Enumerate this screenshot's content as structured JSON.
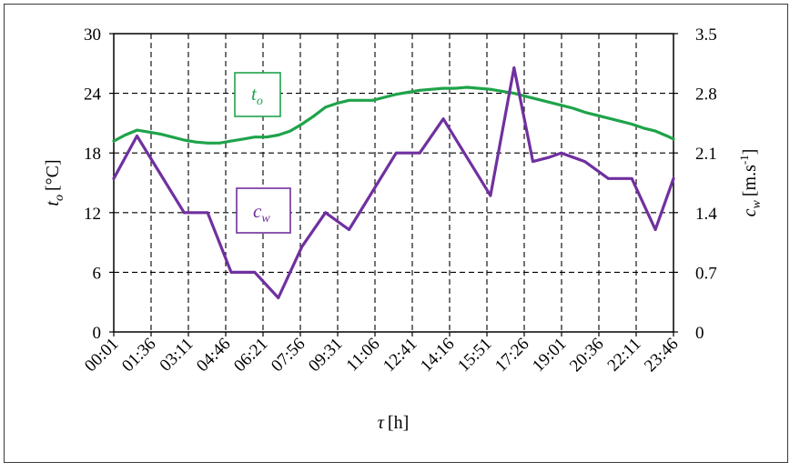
{
  "chart_data": {
    "type": "line",
    "title": "",
    "xlabel_symbol": "τ",
    "xlabel_unit": "[h]",
    "ylabel_left_symbol": "t",
    "ylabel_left_sub": "o",
    "ylabel_left_unit": "[°C]",
    "ylabel_right_symbol": "c",
    "ylabel_right_sub": "w",
    "ylabel_right_unit_pre": "[m.s",
    "ylabel_right_unit_sup": "-1",
    "ylabel_right_unit_post": "]",
    "x_tick_labels": [
      "00:01",
      "01:36",
      "03:11",
      "04:46",
      "06:21",
      "07:56",
      "09:31",
      "11:06",
      "12:41",
      "14:16",
      "15:51",
      "17:26",
      "19:01",
      "20:36",
      "22:11",
      "23:46"
    ],
    "x_range_hours": [
      0.0167,
      23.767
    ],
    "y_left": {
      "ticks": [
        0,
        6,
        12,
        18,
        24,
        30
      ],
      "ylim": [
        0,
        30
      ]
    },
    "y_right": {
      "ticks": [
        "0",
        "0.7",
        "1.4",
        "2.1",
        "2.8",
        "3.5"
      ],
      "ylim": [
        0,
        3.5
      ]
    },
    "grid": true,
    "series": [
      {
        "name": "t_o",
        "label_symbol": "t",
        "label_sub": "o",
        "axis": "left",
        "color": "#1fa34a",
        "x_hours": [
          0.0167,
          0.5,
          1.0,
          1.5,
          2.0,
          2.5,
          3.0,
          3.5,
          4.0,
          4.5,
          5.0,
          5.5,
          6.0,
          6.5,
          7.0,
          7.5,
          8.0,
          8.5,
          9.0,
          9.5,
          10.0,
          10.5,
          11.0,
          11.5,
          12.0,
          12.5,
          13.0,
          13.5,
          14.0,
          14.5,
          15.0,
          15.5,
          16.0,
          16.5,
          17.0,
          17.5,
          18.0,
          18.5,
          19.0,
          19.5,
          20.0,
          20.5,
          21.0,
          21.5,
          22.0,
          22.5,
          23.0,
          23.5,
          23.767
        ],
        "values": [
          19.2,
          19.8,
          20.3,
          20.1,
          19.9,
          19.6,
          19.3,
          19.1,
          19.0,
          19.0,
          19.2,
          19.4,
          19.6,
          19.6,
          19.8,
          20.2,
          20.9,
          21.7,
          22.6,
          23.0,
          23.3,
          23.3,
          23.3,
          23.6,
          23.9,
          24.1,
          24.3,
          24.4,
          24.5,
          24.5,
          24.6,
          24.5,
          24.4,
          24.2,
          24.0,
          23.7,
          23.4,
          23.1,
          22.8,
          22.5,
          22.1,
          21.8,
          21.5,
          21.2,
          20.9,
          20.5,
          20.2,
          19.7,
          19.4
        ]
      },
      {
        "name": "c_w",
        "label_symbol": "c",
        "label_sub": "w",
        "axis": "right",
        "color": "#7030a0",
        "x_hours": [
          0.0167,
          1.0,
          2.0,
          3.0,
          4.0,
          5.0,
          6.0,
          7.0,
          8.0,
          9.0,
          10.0,
          11.0,
          12.0,
          13.0,
          14.0,
          15.0,
          16.0,
          17.0,
          17.8,
          18.5,
          19.0,
          20.0,
          21.0,
          22.0,
          23.0,
          23.767
        ],
        "values": [
          1.8,
          2.3,
          1.85,
          1.4,
          1.4,
          0.7,
          0.7,
          0.4,
          1.0,
          1.4,
          1.2,
          1.65,
          2.1,
          2.1,
          2.5,
          2.05,
          1.6,
          3.1,
          2.0,
          2.05,
          2.1,
          2.0,
          1.8,
          1.8,
          1.2,
          1.8
        ]
      }
    ]
  }
}
